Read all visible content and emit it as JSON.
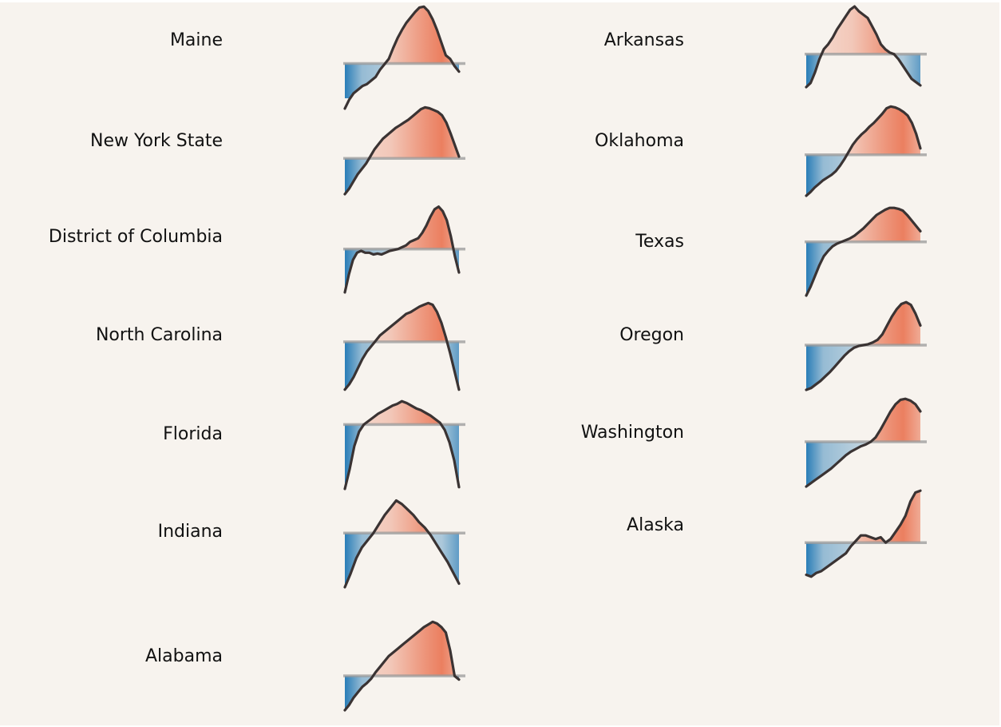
{
  "colors": {
    "background": "#f7f3ee",
    "above": "#e8623c",
    "below": "#1f77b4",
    "line": "#3a3333",
    "baseline": "#9a9a9a"
  },
  "chart_data": {
    "type": "area",
    "title": "",
    "xlabel": "",
    "ylabel": "",
    "grid": false,
    "legend": "none",
    "states": [
      {
        "name": "Maine",
        "baseline": 0.35,
        "values": [
          -0.15,
          -0.05,
          0.02,
          0.06,
          0.1,
          0.12,
          0.16,
          0.2,
          0.28,
          0.34,
          0.4,
          0.52,
          0.63,
          0.72,
          0.8,
          0.86,
          0.92,
          0.97,
          0.98,
          0.93,
          0.84,
          0.72,
          0.58,
          0.44,
          0.4,
          0.32,
          0.26
        ]
      },
      {
        "name": "Arkansas",
        "baseline": 0.4,
        "values": [
          0.0,
          0.05,
          0.18,
          0.34,
          0.46,
          0.52,
          0.6,
          0.7,
          0.78,
          0.86,
          0.94,
          0.98,
          0.92,
          0.88,
          0.84,
          0.74,
          0.64,
          0.52,
          0.46,
          0.42,
          0.4,
          0.34,
          0.26,
          0.18,
          0.1,
          0.06,
          0.02
        ]
      },
      {
        "name": "New York State",
        "baseline": 0.4,
        "values": [
          0.0,
          0.06,
          0.14,
          0.22,
          0.28,
          0.34,
          0.42,
          0.5,
          0.56,
          0.62,
          0.66,
          0.7,
          0.74,
          0.77,
          0.8,
          0.83,
          0.87,
          0.91,
          0.95,
          0.97,
          0.96,
          0.94,
          0.92,
          0.88,
          0.8,
          0.68,
          0.55,
          0.42
        ]
      },
      {
        "name": "Oklahoma",
        "baseline": 0.45,
        "values": [
          0.0,
          0.04,
          0.09,
          0.13,
          0.17,
          0.2,
          0.23,
          0.27,
          0.33,
          0.4,
          0.48,
          0.56,
          0.62,
          0.67,
          0.71,
          0.76,
          0.8,
          0.85,
          0.9,
          0.96,
          0.98,
          0.97,
          0.95,
          0.92,
          0.88,
          0.8,
          0.68,
          0.52
        ]
      },
      {
        "name": "District of Columbia",
        "baseline": 0.48,
        "values": [
          0.0,
          0.2,
          0.36,
          0.44,
          0.46,
          0.44,
          0.44,
          0.42,
          0.43,
          0.42,
          0.44,
          0.46,
          0.47,
          0.48,
          0.5,
          0.52,
          0.56,
          0.58,
          0.6,
          0.66,
          0.74,
          0.84,
          0.92,
          0.95,
          0.9,
          0.8,
          0.62,
          0.4,
          0.22
        ]
      },
      {
        "name": "Texas",
        "baseline": 0.6,
        "values": [
          0.0,
          0.1,
          0.22,
          0.34,
          0.44,
          0.5,
          0.55,
          0.58,
          0.6,
          0.62,
          0.64,
          0.67,
          0.71,
          0.75,
          0.8,
          0.85,
          0.9,
          0.93,
          0.96,
          0.98,
          0.98,
          0.97,
          0.95,
          0.9,
          0.84,
          0.78,
          0.72
        ]
      },
      {
        "name": "North Carolina",
        "baseline": 0.55,
        "values": [
          0.02,
          0.08,
          0.16,
          0.26,
          0.36,
          0.44,
          0.5,
          0.56,
          0.62,
          0.66,
          0.7,
          0.74,
          0.78,
          0.82,
          0.86,
          0.88,
          0.91,
          0.94,
          0.96,
          0.98,
          0.96,
          0.88,
          0.76,
          0.6,
          0.42,
          0.22,
          0.02
        ]
      },
      {
        "name": "Oregon",
        "baseline": 0.5,
        "values": [
          0.0,
          0.02,
          0.06,
          0.1,
          0.15,
          0.2,
          0.26,
          0.32,
          0.38,
          0.43,
          0.47,
          0.49,
          0.5,
          0.51,
          0.53,
          0.56,
          0.62,
          0.72,
          0.82,
          0.9,
          0.96,
          0.98,
          0.95,
          0.85,
          0.72
        ]
      },
      {
        "name": "Florida",
        "baseline": 0.72,
        "values": [
          0.0,
          0.22,
          0.48,
          0.64,
          0.72,
          0.76,
          0.8,
          0.84,
          0.87,
          0.9,
          0.93,
          0.95,
          0.98,
          0.96,
          0.93,
          0.9,
          0.88,
          0.85,
          0.82,
          0.78,
          0.74,
          0.66,
          0.52,
          0.32,
          0.02
        ]
      },
      {
        "name": "Washington",
        "baseline": 0.5,
        "values": [
          0.0,
          0.04,
          0.08,
          0.12,
          0.16,
          0.2,
          0.25,
          0.3,
          0.35,
          0.39,
          0.42,
          0.45,
          0.47,
          0.5,
          0.55,
          0.64,
          0.74,
          0.84,
          0.92,
          0.97,
          0.98,
          0.96,
          0.92,
          0.84
        ]
      },
      {
        "name": "Indiana",
        "baseline": 0.6,
        "values": [
          0.0,
          0.15,
          0.32,
          0.44,
          0.52,
          0.6,
          0.7,
          0.8,
          0.88,
          0.96,
          0.92,
          0.86,
          0.8,
          0.72,
          0.66,
          0.58,
          0.48,
          0.38,
          0.28,
          0.16,
          0.04
        ]
      },
      {
        "name": "Alaska",
        "baseline": 0.4,
        "values": [
          0.04,
          0.02,
          0.06,
          0.08,
          0.12,
          0.16,
          0.2,
          0.24,
          0.28,
          0.36,
          0.42,
          0.48,
          0.48,
          0.46,
          0.44,
          0.46,
          0.4,
          0.44,
          0.52,
          0.6,
          0.7,
          0.86,
          0.96,
          0.98
        ]
      },
      {
        "name": "Alabama",
        "baseline": 0.38,
        "values": [
          0.0,
          0.06,
          0.14,
          0.2,
          0.26,
          0.3,
          0.35,
          0.42,
          0.48,
          0.54,
          0.6,
          0.64,
          0.68,
          0.72,
          0.76,
          0.8,
          0.84,
          0.88,
          0.92,
          0.95,
          0.98,
          0.96,
          0.92,
          0.86,
          0.66,
          0.38,
          0.34
        ]
      }
    ]
  }
}
